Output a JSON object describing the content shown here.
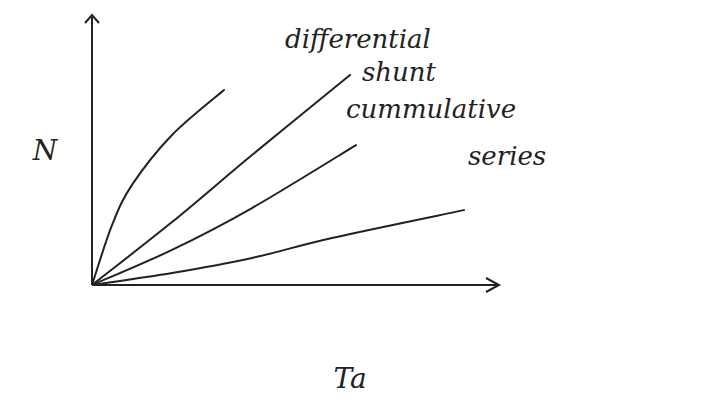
{
  "chart_data": {
    "type": "line",
    "xlabel": "Ta",
    "ylabel": "N",
    "xlim": [
      0,
      10
    ],
    "ylim": [
      0,
      10
    ],
    "xticks": [],
    "yticks": [],
    "tick_labels": false,
    "series": [
      {
        "name": "differential",
        "color": "#222222",
        "x": [
          0,
          0.5,
          1,
          2,
          3.3
        ],
        "values": [
          0,
          2.3,
          3.85,
          5.77,
          7.5
        ]
      },
      {
        "name": "shunt",
        "color": "#222222",
        "x": [
          0,
          2,
          4,
          6.45
        ],
        "values": [
          0,
          2.42,
          5.0,
          8.08
        ]
      },
      {
        "name": "cummulative",
        "color": "#222222",
        "x": [
          0,
          2,
          4,
          6.6
        ],
        "values": [
          0,
          1.35,
          2.96,
          5.38
        ]
      },
      {
        "name": "series",
        "color": "#222222",
        "x": [
          0,
          2,
          4,
          6,
          9.3
        ],
        "values": [
          0,
          0.46,
          1.04,
          1.81,
          2.88
        ]
      }
    ]
  }
}
